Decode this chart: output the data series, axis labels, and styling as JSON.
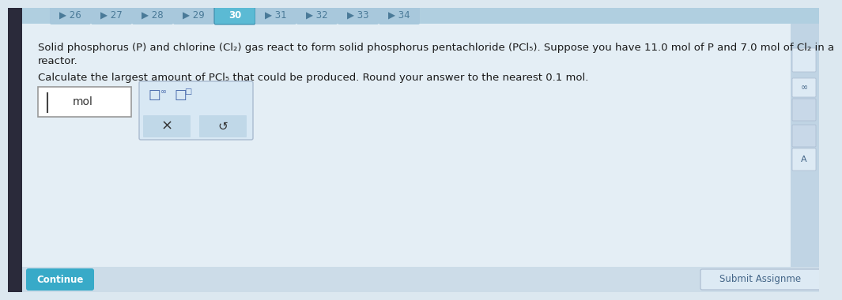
{
  "bg_color": "#c8dae8",
  "top_bar_color": "#b0cfe0",
  "tab_numbers": [
    "26",
    "27",
    "28",
    "29",
    "30",
    "31",
    "32",
    "33",
    "34"
  ],
  "tab_active": "30",
  "tab_active_color": "#5bbad4",
  "tab_inactive_color": "#a8c8dc",
  "tab_text_color": "#ffffff",
  "tab_inactive_text_color": "#4a7a98",
  "main_bg": "#dce8f0",
  "content_bg": "#e4eef5",
  "paragraph1_line1": "Solid phosphorus (P) and chlorine (Cl₂) gas react to form solid phosphorus pentachloride (PCl₅). Suppose you have 11.0 mol of P and 7.0 mol of Cl₂ in a",
  "paragraph1_line2": "reactor.",
  "paragraph2": "Calculate the largest amount of PCl₅ that could be produced. Round your answer to the nearest 0.1 mol.",
  "input_box_bg": "#ffffff",
  "input_box_border": "#999999",
  "formula_box_bg": "#d8e8f4",
  "formula_box_border": "#aabbd0",
  "button_x_label": "×",
  "button_undo_label": "↺",
  "button_color": "#c0d8e8",
  "continue_btn_color": "#38aac8",
  "continue_btn_text": "Continue",
  "submit_btn_text": "Submit Assignme",
  "submit_btn_color": "#ddeaf4",
  "right_sidebar_bg": "#c0d4e4",
  "right_sidebar_icon_bg": "#ddeaf4",
  "right_sidebar_icon_border": "#aabbd0",
  "text_color": "#1a1a1a",
  "dark_left_edge": "#2a2a3a",
  "font_size_body": 9.5,
  "font_size_tab": 8.5
}
